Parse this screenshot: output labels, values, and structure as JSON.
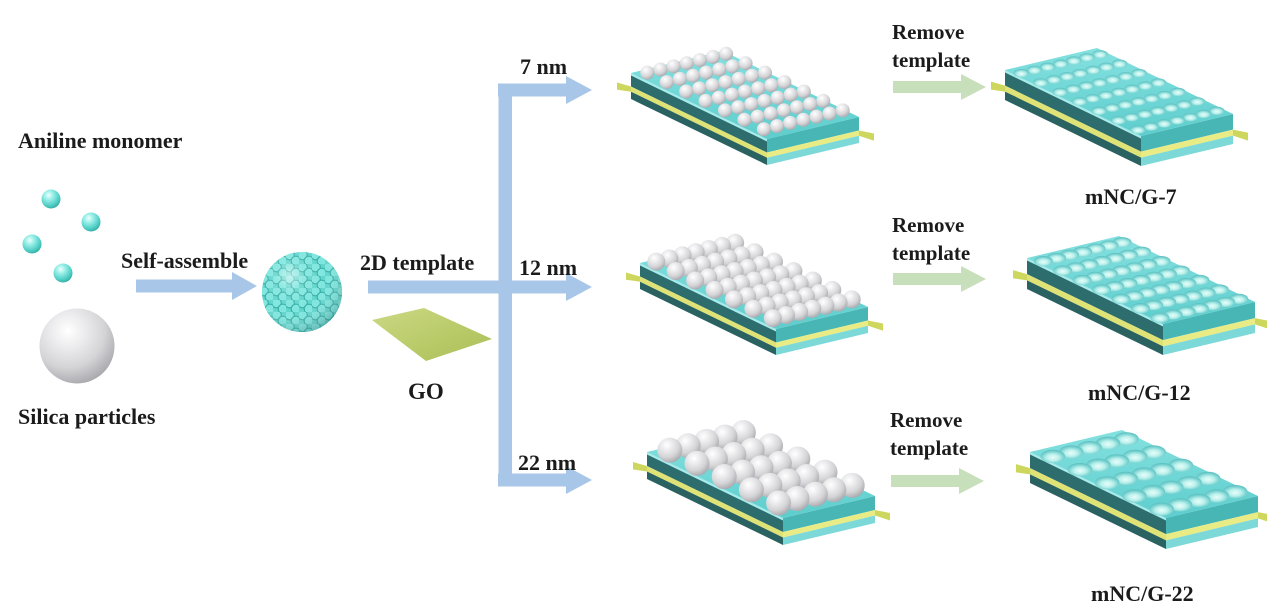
{
  "flow": {
    "aniline_label": "Aniline monomer",
    "silica_label": "Silica particles",
    "assemble_label": "Self-assemble",
    "template_arrow_label": "2D template",
    "go_label": "GO",
    "branches": [
      {
        "size_label": "7 nm",
        "remove_line1": "Remove",
        "remove_line2": "template",
        "product_label": "mNC/G-7"
      },
      {
        "size_label": "12 nm",
        "remove_line1": "Remove",
        "remove_line2": "template",
        "product_label": "mNC/G-12"
      },
      {
        "size_label": "22 nm",
        "remove_line1": "Remove",
        "remove_line2": "template",
        "product_label": "mNC/G-22"
      }
    ],
    "colors": {
      "arrow_blue": "#a8c6e7",
      "arrow_green": "#c8dfbb",
      "slab_top_cyan": "#6fd6d5",
      "slab_side_dark_teal": "#2e6d6d",
      "slab_side_light_teal": "#49b6b6",
      "go_sheet_yellow_green": "#bcce6d",
      "go_stripe_yellow": "#dfe375",
      "monomer_sphere_cyan": "#7fe8e0",
      "silica_sphere_gray": "#d8d8da",
      "text_black": "#1b1b1b",
      "background": "#ffffff"
    }
  }
}
